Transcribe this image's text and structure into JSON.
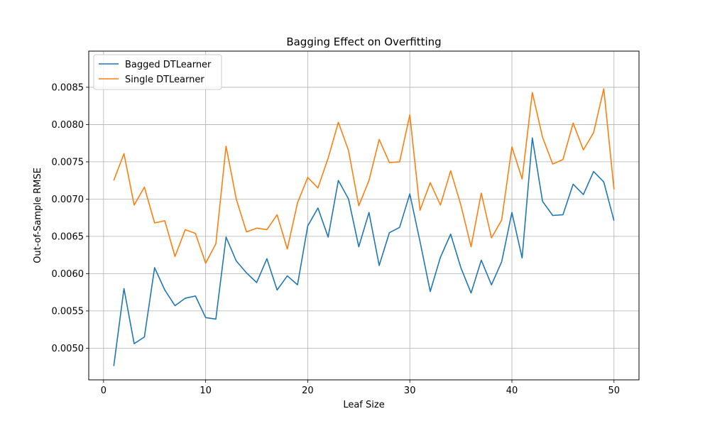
{
  "chart_data": {
    "type": "line",
    "title": "Bagging Effect on Overfitting",
    "xlabel": "Leaf Size",
    "ylabel": "Out-of-Sample RMSE",
    "xlim": [
      -1.45,
      52.45
    ],
    "ylim": [
      0.004575,
      0.008985
    ],
    "xticks": [
      0,
      10,
      20,
      30,
      40,
      50
    ],
    "xtick_labels": [
      "0",
      "10",
      "20",
      "30",
      "40",
      "50"
    ],
    "yticks": [
      0.005,
      0.0055,
      0.006,
      0.0065,
      0.007,
      0.0075,
      0.008,
      0.0085
    ],
    "ytick_labels": [
      "0.0050",
      "0.0055",
      "0.0060",
      "0.0065",
      "0.0070",
      "0.0075",
      "0.0080",
      "0.0085"
    ],
    "grid": true,
    "legend_position": "top-left",
    "x": [
      1,
      2,
      3,
      4,
      5,
      6,
      7,
      8,
      9,
      10,
      11,
      12,
      13,
      14,
      15,
      16,
      17,
      18,
      19,
      20,
      21,
      22,
      23,
      24,
      25,
      26,
      27,
      28,
      29,
      30,
      31,
      32,
      33,
      34,
      35,
      36,
      37,
      38,
      39,
      40,
      41,
      42,
      43,
      44,
      45,
      46,
      47,
      48,
      49,
      50
    ],
    "series": [
      {
        "name": "Bagged DTLearner",
        "color": "#1f77b4",
        "values": [
          0.00476,
          0.0058,
          0.00506,
          0.00515,
          0.00608,
          0.00578,
          0.00557,
          0.00567,
          0.0057,
          0.00541,
          0.00539,
          0.00649,
          0.00617,
          0.00601,
          0.00588,
          0.0062,
          0.00578,
          0.00597,
          0.00585,
          0.00664,
          0.00688,
          0.00649,
          0.00725,
          0.007,
          0.00636,
          0.00682,
          0.00611,
          0.00655,
          0.00662,
          0.00707,
          0.00643,
          0.00576,
          0.00622,
          0.00653,
          0.00608,
          0.00574,
          0.00618,
          0.00585,
          0.00616,
          0.00682,
          0.00621,
          0.00782,
          0.00697,
          0.00678,
          0.00679,
          0.0072,
          0.00706,
          0.00737,
          0.00723,
          0.00671
        ]
      },
      {
        "name": "Single DTLearner",
        "color": "#ff7f0e",
        "values": [
          0.00725,
          0.00761,
          0.00692,
          0.00716,
          0.00668,
          0.00671,
          0.00623,
          0.00659,
          0.00654,
          0.00614,
          0.0064,
          0.00771,
          0.007,
          0.00656,
          0.00661,
          0.00659,
          0.00679,
          0.00633,
          0.00695,
          0.00729,
          0.00715,
          0.00755,
          0.00803,
          0.00765,
          0.00691,
          0.00725,
          0.0078,
          0.00749,
          0.0075,
          0.00813,
          0.00685,
          0.00722,
          0.00692,
          0.00738,
          0.00692,
          0.00636,
          0.00708,
          0.00648,
          0.00672,
          0.0077,
          0.00727,
          0.00843,
          0.00783,
          0.00747,
          0.00753,
          0.00802,
          0.00766,
          0.00789,
          0.00848,
          0.00713
        ]
      }
    ]
  }
}
